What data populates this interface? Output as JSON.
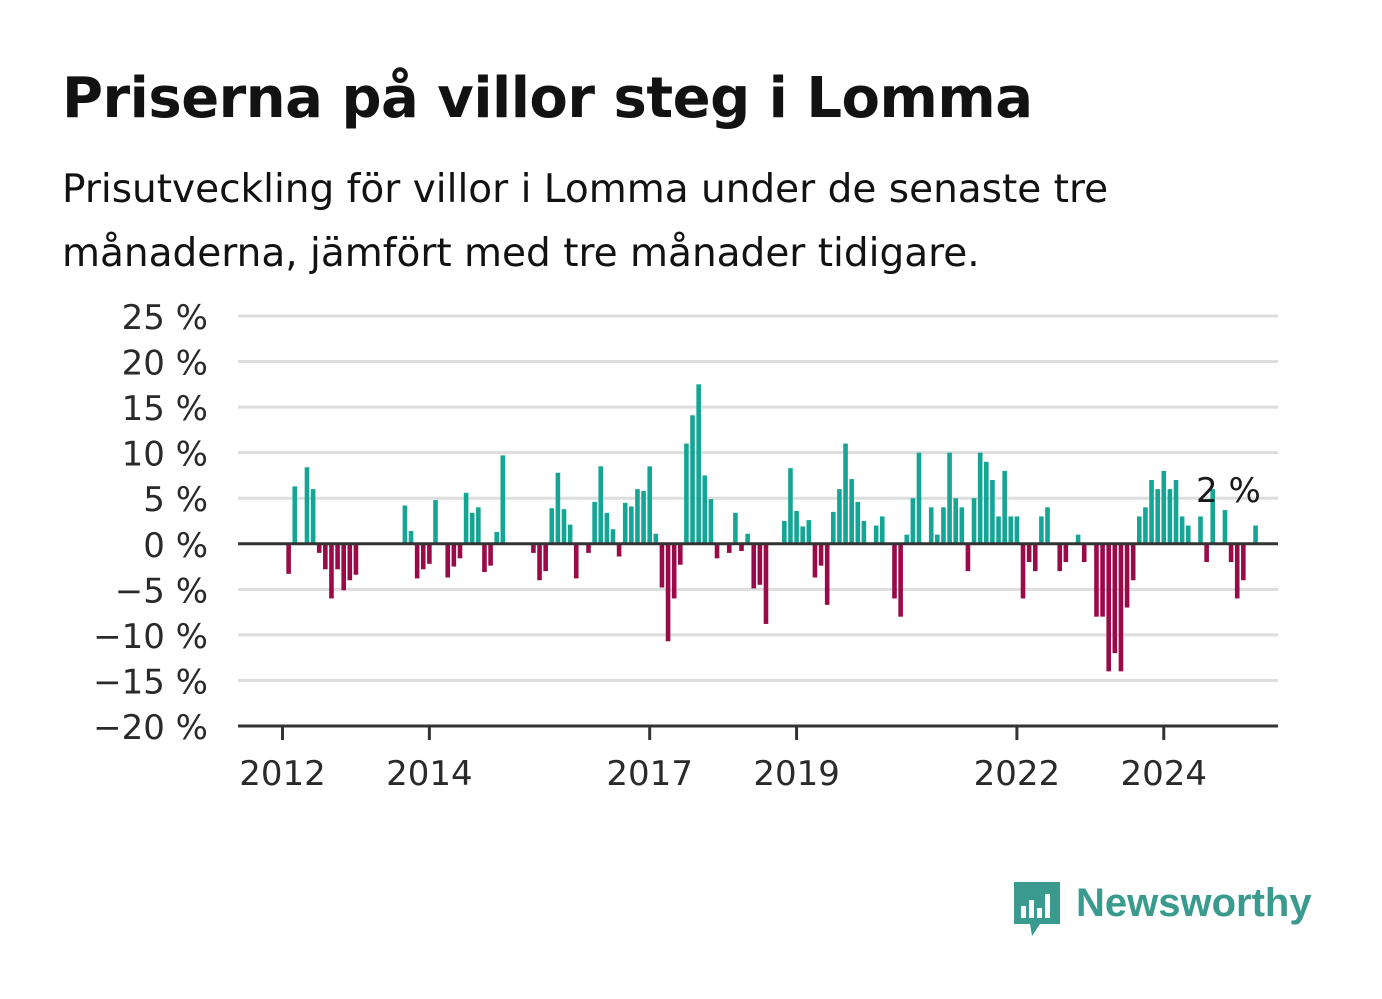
{
  "header": {
    "title": "Priserna på villor steg i Lomma",
    "subtitle": "Prisutveckling för villor i Lomma under de senaste tre månaderna, jämfört med tre månader tidigare."
  },
  "brand": {
    "name": "Newsworthy",
    "icon": "newsworthy-logo-icon",
    "color": "#3a9a8e"
  },
  "colors": {
    "positive": "#14a594",
    "negative": "#9b0a48",
    "grid": "#dddddd",
    "zero_line": "#333333"
  },
  "chart_data": {
    "type": "bar",
    "ylim": [
      -20,
      25
    ],
    "y_ticks": [
      25,
      20,
      15,
      10,
      5,
      0,
      -5,
      -10,
      -15,
      -20
    ],
    "y_tick_labels": [
      "25 %",
      "20 %",
      "15 %",
      "10 %",
      "5 %",
      "0 %",
      "−5 %",
      "−10 %",
      "−15 %",
      "−20 %"
    ],
    "x_tick_labels": [
      "2012",
      "2014",
      "2017",
      "2019",
      "2022",
      "2024"
    ],
    "x_tick_months": [
      0,
      24,
      60,
      84,
      120,
      144
    ],
    "grid": true,
    "annotation": {
      "text": "2 %",
      "month": 154,
      "value": 2
    },
    "series": [
      {
        "start_month": 1,
        "values": [
          -3.3,
          6.3,
          0,
          8.4,
          6.0,
          -1.0,
          -2.8,
          -6.0,
          -2.8,
          -5.1,
          -4.0,
          -3.4,
          0,
          0,
          0,
          0,
          0,
          0,
          0,
          4.2,
          1.4,
          -3.8,
          -2.8,
          -2.2,
          4.8,
          0,
          -3.7,
          -2.5,
          -1.6,
          5.6,
          3.4,
          4.0,
          -3.1,
          -2.4,
          1.3,
          9.7,
          0,
          0,
          0,
          0,
          -1.0,
          -4.0,
          -3.0,
          3.9,
          7.8,
          3.8,
          2.1,
          -3.8,
          0,
          -1.0,
          4.6,
          8.5,
          3.4,
          1.6,
          -1.4,
          4.5,
          4.1,
          6.0,
          5.8,
          8.5,
          1.1,
          -4.8,
          -10.7,
          -6.0,
          -2.3,
          11.0,
          14.1,
          17.5,
          7.5,
          4.9,
          -1.6,
          0,
          -1.0,
          3.4,
          -0.8,
          1.1,
          -4.9,
          -4.5,
          -8.8,
          0,
          0,
          2.5,
          8.3,
          3.6,
          1.9,
          2.6,
          -3.7,
          -2.4,
          -6.7,
          3.5,
          6.0,
          11.0,
          7.1,
          4.6,
          2.5,
          0,
          2.0,
          3.0,
          0,
          -6.0,
          -8.0,
          1.0,
          5.0,
          10.0,
          0,
          4.0,
          1.0,
          4.0,
          10.0,
          5.0,
          4.0,
          -3.0,
          5.0,
          10.0,
          9.0,
          7.0,
          3.0,
          8.0,
          3.0,
          3.0,
          -6.0,
          -2.0,
          -3.0,
          3.0,
          4.0,
          0,
          -3.0,
          -2.0,
          0,
          1.0,
          -2.0,
          0,
          -8.0,
          -8.0,
          -14.0,
          -12.0,
          -14.0,
          -7.0,
          -4.0,
          3.0,
          4.0,
          7.0,
          6.0,
          8.0,
          6.0,
          7.0,
          3.0,
          2.0,
          0,
          3.0,
          -2.0,
          6.0,
          0,
          3.7,
          -2.0,
          -6.0,
          -4.0,
          0,
          2.0
        ]
      }
    ]
  }
}
